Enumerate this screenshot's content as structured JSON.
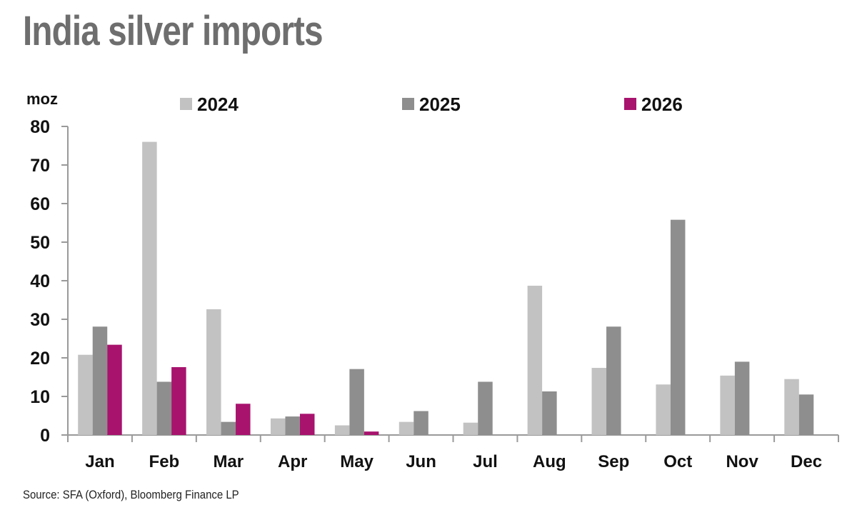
{
  "title": "India silver imports",
  "source": "Source: SFA (Oxford), Bloomberg Finance LP",
  "chart_data": {
    "type": "bar",
    "title": "India silver imports",
    "ylabel": "moz",
    "xlabel": "",
    "ylim": [
      0,
      80
    ],
    "yticks": [
      "0",
      "10",
      "20",
      "30",
      "40",
      "50",
      "60",
      "70",
      "80"
    ],
    "categories": [
      "Jan",
      "Feb",
      "Mar",
      "Apr",
      "May",
      "Jun",
      "Jul",
      "Aug",
      "Sep",
      "Oct",
      "Nov",
      "Dec"
    ],
    "series": [
      {
        "name": "2024",
        "color": "#c2c2c2",
        "values": [
          20.8,
          76.0,
          32.6,
          4.3,
          2.5,
          3.4,
          3.2,
          38.7,
          17.4,
          13.1,
          15.4,
          14.5
        ]
      },
      {
        "name": "2025",
        "color": "#8e8e8e",
        "values": [
          28.1,
          13.8,
          3.4,
          4.8,
          17.1,
          6.2,
          13.8,
          11.3,
          28.1,
          55.8,
          19.0,
          10.5
        ]
      },
      {
        "name": "2026",
        "color": "#a8136e",
        "values": [
          23.4,
          17.6,
          8.1,
          5.5,
          0.9,
          null,
          null,
          null,
          null,
          null,
          null,
          null
        ]
      }
    ],
    "legend_position": "top",
    "grid": false
  }
}
